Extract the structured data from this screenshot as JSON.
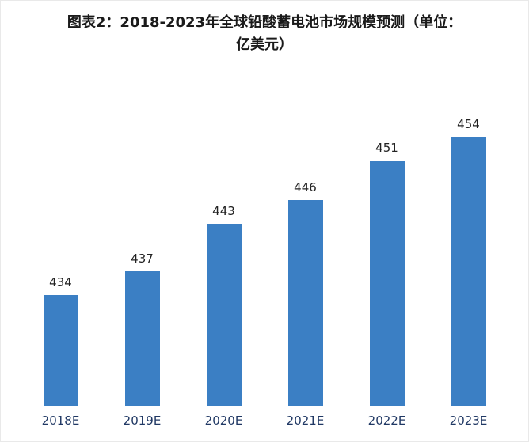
{
  "title_lines": [
    "图表2：2018-2023年全球铅酸蓄电池市场规模预测（单位：",
    "亿美元）"
  ],
  "colors": {
    "bar": "#3b7fc4",
    "value_label": "#222222",
    "axis_label": "#203864",
    "border": "#e9e9e9"
  },
  "chart_data": {
    "type": "bar",
    "title": "图表2：2018-2023年全球铅酸蓄电池市场规模预测（单位：亿美元）",
    "categories": [
      "2018E",
      "2019E",
      "2020E",
      "2021E",
      "2022E",
      "2023E"
    ],
    "values": [
      434,
      437,
      443,
      446,
      451,
      454
    ],
    "xlabel": "",
    "ylabel": "",
    "unit": "亿美元",
    "ylim": [
      420,
      460
    ],
    "grid": false,
    "legend": false,
    "data_labels": true,
    "bar_color": "#3b7fc4"
  }
}
